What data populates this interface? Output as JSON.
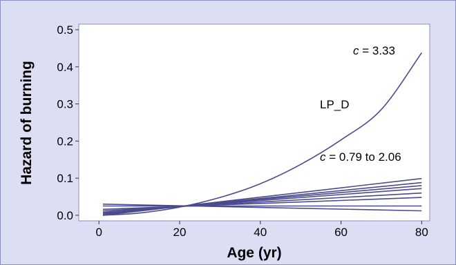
{
  "chart_data": {
    "type": "line",
    "xlabel": "Age (yr)",
    "ylabel": "Hazard of burning",
    "xlim": [
      -5,
      82
    ],
    "ylim": [
      -0.015,
      0.515
    ],
    "xticks": [
      "0",
      "20",
      "40",
      "60",
      "80"
    ],
    "yticks": [
      "0.0",
      "0.1",
      "0.2",
      "0.3",
      "0.4",
      "0.5"
    ],
    "grid": false,
    "line_color": "#4a4a8c",
    "background_color": "#dcdff3",
    "plot_background_color": "#ffffff",
    "annotations": [
      {
        "italic": "c",
        "text": " = 3.33"
      },
      {
        "italic": "",
        "text": "LP_D"
      },
      {
        "italic": "c",
        "text": " = 0.79 to 2.06"
      }
    ],
    "series": [
      {
        "x": [
          1,
          10,
          20,
          30,
          40,
          50,
          60,
          70,
          80
        ],
        "y": [
          0.0,
          0.006,
          0.022,
          0.048,
          0.085,
          0.137,
          0.203,
          0.285,
          0.438
        ]
      },
      {
        "x": [
          1,
          80
        ],
        "y": [
          0.0,
          0.099
        ]
      },
      {
        "x": [
          1,
          80
        ],
        "y": [
          0.003,
          0.088
        ]
      },
      {
        "x": [
          1,
          80
        ],
        "y": [
          0.006,
          0.08
        ]
      },
      {
        "x": [
          1,
          80
        ],
        "y": [
          0.008,
          0.072
        ]
      },
      {
        "x": [
          1,
          80
        ],
        "y": [
          0.012,
          0.06
        ]
      },
      {
        "x": [
          1,
          80
        ],
        "y": [
          0.016,
          0.048
        ]
      },
      {
        "x": [
          1,
          80
        ],
        "y": [
          0.025,
          0.025
        ]
      },
      {
        "x": [
          1,
          80
        ],
        "y": [
          0.03,
          0.012
        ]
      }
    ]
  }
}
